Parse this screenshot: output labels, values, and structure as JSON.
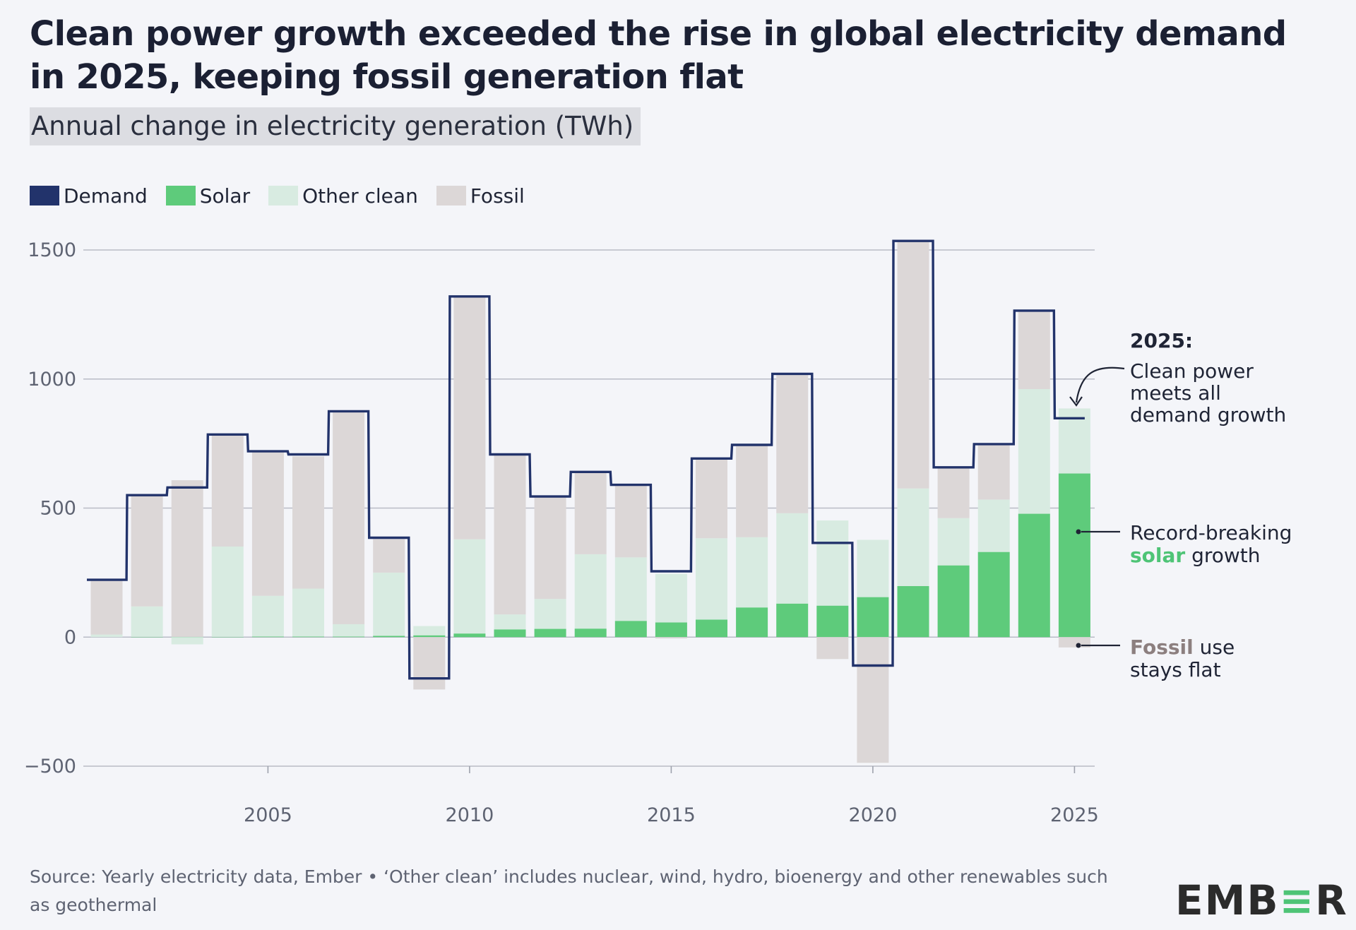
{
  "title": "Clean power growth exceeded the rise in global electricity demand in 2025, keeping fossil generation flat",
  "subtitle": "Annual change in electricity generation (TWh)",
  "legend": [
    {
      "label": "Demand",
      "color": "#22336b",
      "kind": "outline"
    },
    {
      "label": "Solar",
      "color": "#5ecb7b",
      "kind": "fill"
    },
    {
      "label": "Other clean",
      "color": "#d8ebe1",
      "kind": "fill"
    },
    {
      "label": "Fossil",
      "color": "#dcd7d7",
      "kind": "fill"
    }
  ],
  "chart_data": {
    "type": "bar",
    "stacked": true,
    "x": [
      2001,
      2002,
      2003,
      2004,
      2005,
      2006,
      2007,
      2008,
      2009,
      2010,
      2011,
      2012,
      2013,
      2014,
      2015,
      2016,
      2017,
      2018,
      2019,
      2020,
      2021,
      2022,
      2023,
      2024,
      2025
    ],
    "series": [
      {
        "name": "Solar",
        "color": "#5ecb7b",
        "values": [
          0,
          1,
          1,
          1,
          2,
          2,
          2,
          5,
          7,
          14,
          30,
          32,
          33,
          63,
          57,
          68,
          115,
          130,
          122,
          155,
          198,
          278,
          330,
          478,
          634
        ]
      },
      {
        "name": "Other clean",
        "color": "#d8ebe1",
        "values": [
          10,
          118,
          -28,
          350,
          158,
          186,
          48,
          245,
          36,
          365,
          58,
          116,
          288,
          246,
          188,
          315,
          272,
          350,
          330,
          222,
          378,
          183,
          203,
          483,
          252
        ]
      },
      {
        "name": "Fossil",
        "color": "#dcd7d7",
        "values": [
          212,
          428,
          607,
          432,
          560,
          512,
          824,
          130,
          -203,
          943,
          617,
          397,
          318,
          278,
          -5,
          308,
          356,
          540,
          -85,
          -487,
          958,
          197,
          212,
          303,
          -40
        ]
      },
      {
        "name": "Demand",
        "color": "#22336b",
        "kind": "step-line",
        "values": [
          222,
          550,
          580,
          785,
          720,
          708,
          875,
          385,
          -160,
          1320,
          708,
          545,
          640,
          590,
          255,
          692,
          745,
          1020,
          365,
          -110,
          1535,
          658,
          748,
          1265,
          848
        ]
      }
    ],
    "xticks": [
      "2005",
      "2010",
      "2015",
      "2020",
      "2025"
    ],
    "yticks": [
      "1500",
      "1000",
      "500",
      "0",
      "−500"
    ],
    "ylim": [
      -500,
      1500
    ],
    "grid": "horizontal",
    "legend_position": "top-left",
    "annotations": {
      "year_label": "2025:",
      "clean_power": [
        "Clean power",
        "meets all",
        "demand growth"
      ],
      "solar": {
        "pre": "Record-breaking",
        "highlight": "solar",
        "post": " growth"
      },
      "fossil": {
        "highlight": "Fossil",
        "post": " use",
        "line2": "stays flat"
      }
    }
  },
  "source": "Source: Yearly electricity data, Ember • ‘Other clean’ includes nuclear, wind, hydro, bioenergy and other renewables such as geothermal",
  "logo": {
    "part1": "EMB",
    "part2": "≡",
    "part3": "R"
  }
}
